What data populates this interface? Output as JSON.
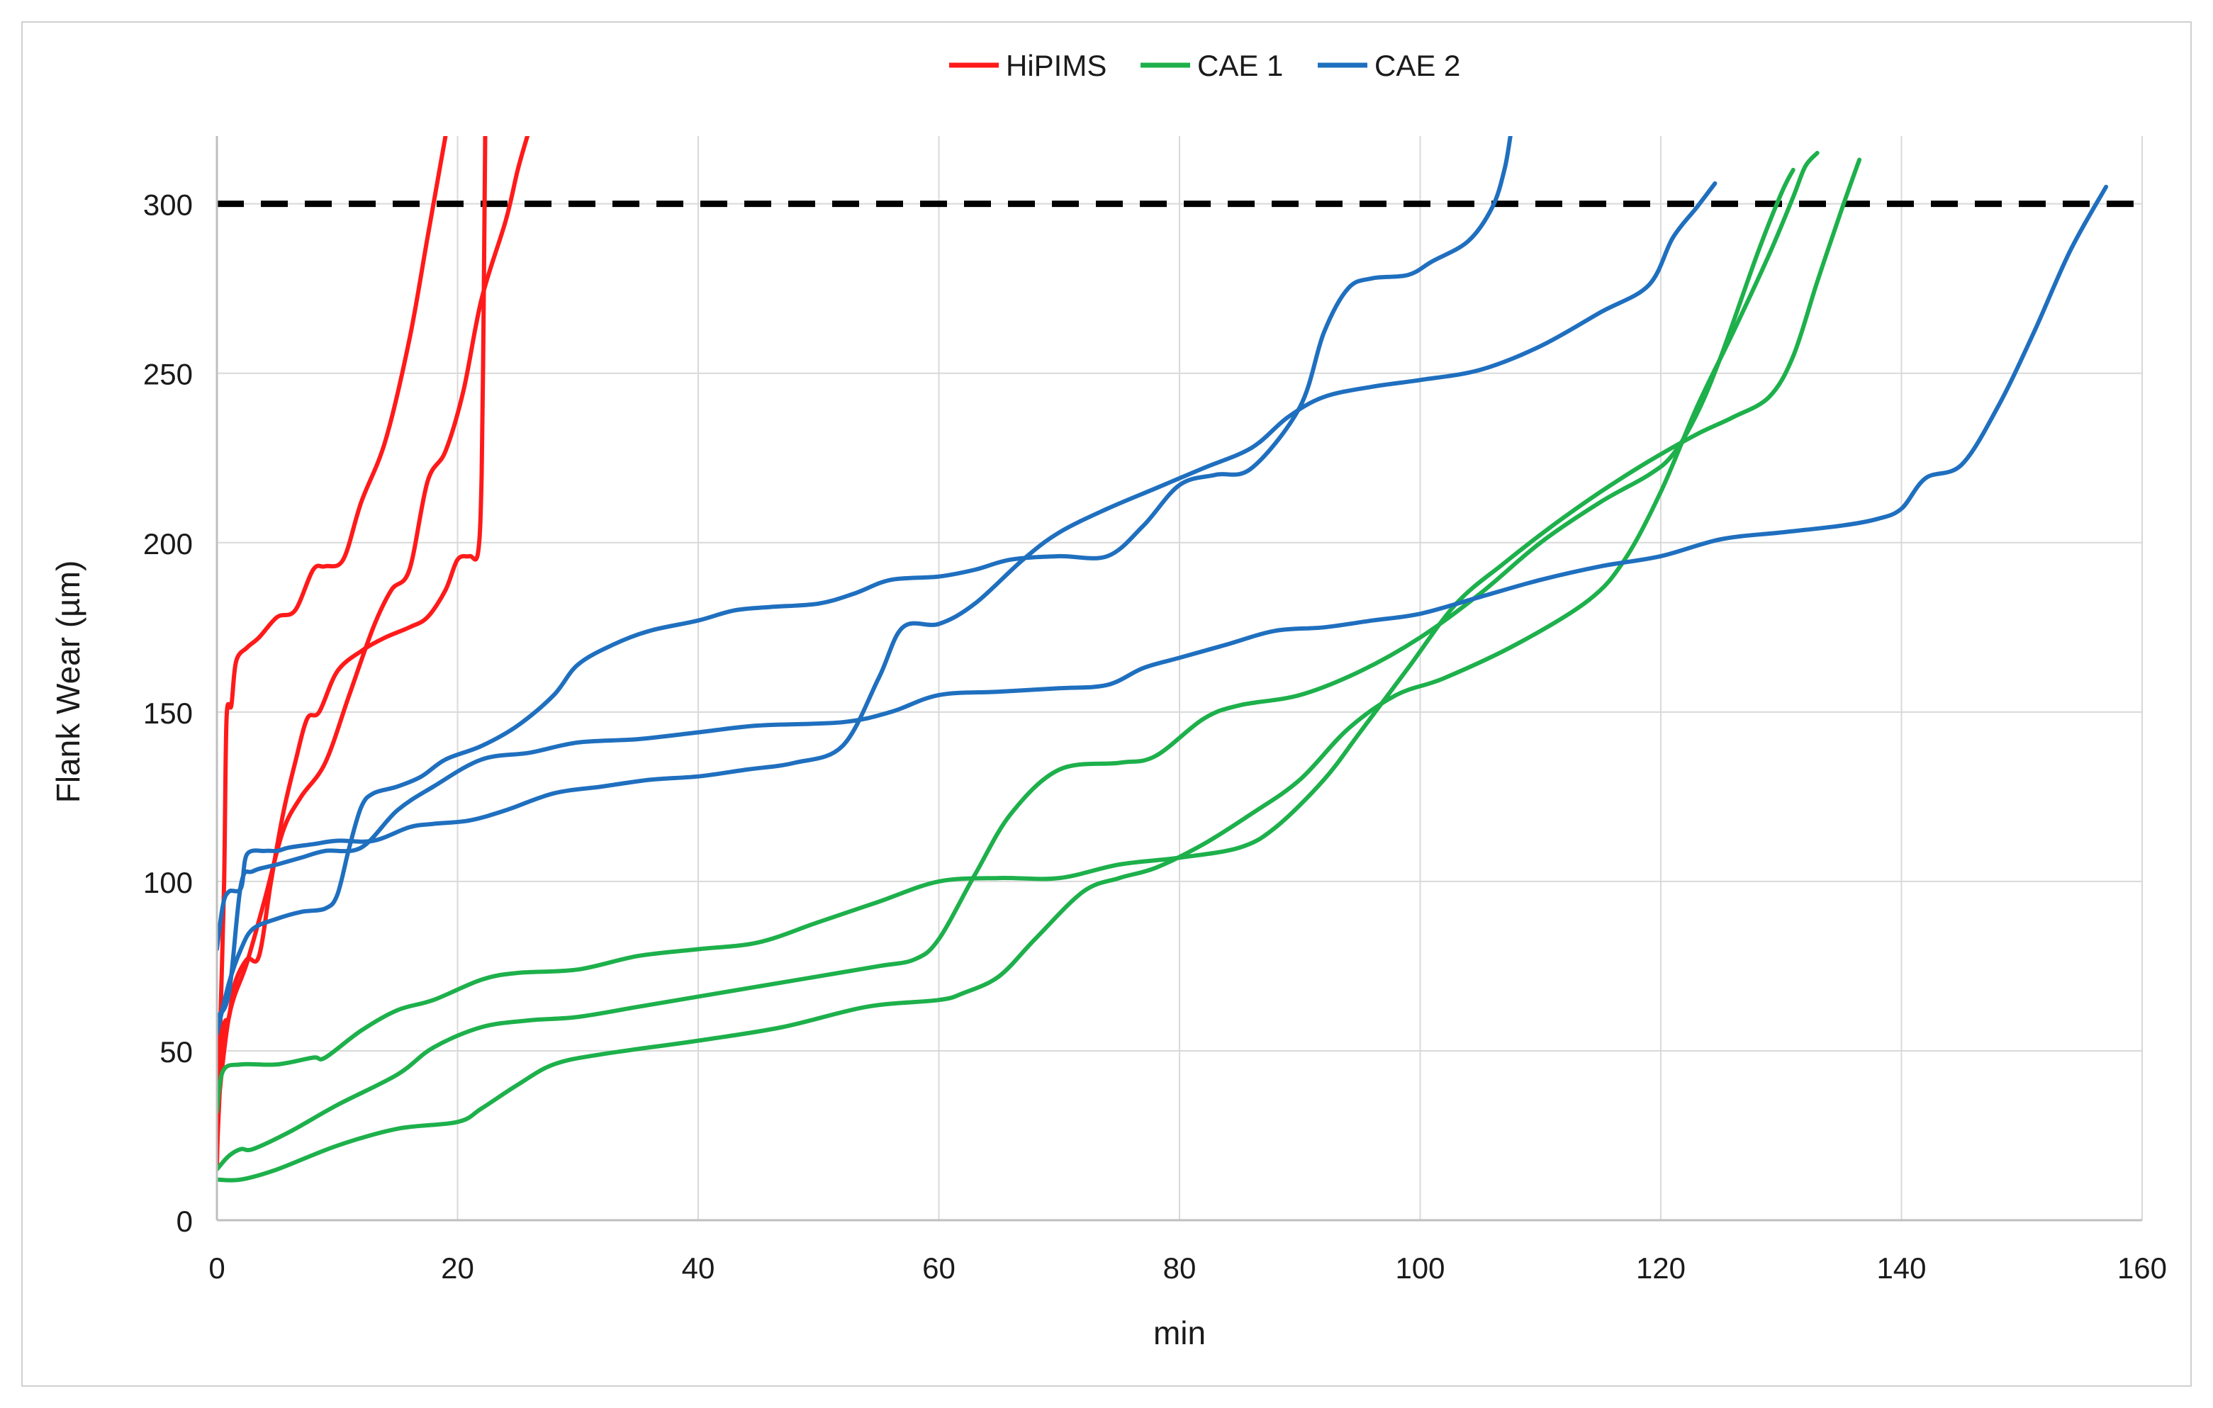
{
  "chart_data": {
    "type": "line",
    "title": "",
    "xlabel": "min",
    "ylabel": "Flank Wear (µm)",
    "xlim": [
      0,
      160
    ],
    "ylim": [
      0,
      320
    ],
    "x_ticks": [
      0,
      20,
      40,
      60,
      80,
      100,
      120,
      140,
      160
    ],
    "y_ticks": [
      0,
      50,
      100,
      150,
      200,
      250,
      300
    ],
    "grid": true,
    "legend_position": "top-center",
    "legend": [
      {
        "name": "HiPIMS",
        "color": "#ff1a1a"
      },
      {
        "name": "CAE 1",
        "color": "#1db04b"
      },
      {
        "name": "CAE 2",
        "color": "#1f6fbf"
      }
    ],
    "reference_line": {
      "y": 300,
      "style": "dashed",
      "color": "#000000"
    },
    "series": [
      {
        "group": "HiPIMS",
        "color": "#ff1a1a",
        "points": [
          [
            0,
            16
          ],
          [
            0.3,
            60
          ],
          [
            0.6,
            100
          ],
          [
            0.8,
            148
          ],
          [
            1.2,
            152
          ],
          [
            1.6,
            165
          ],
          [
            2.5,
            169
          ],
          [
            3.5,
            172
          ],
          [
            5,
            178
          ],
          [
            6.5,
            180
          ],
          [
            8,
            192
          ],
          [
            9,
            193
          ],
          [
            10.5,
            195
          ],
          [
            12,
            212
          ],
          [
            14,
            230
          ],
          [
            16,
            260
          ],
          [
            17.5,
            290
          ],
          [
            19,
            320
          ]
        ]
      },
      {
        "group": "HiPIMS",
        "color": "#ff1a1a",
        "points": [
          [
            0,
            20
          ],
          [
            0.5,
            55
          ],
          [
            1,
            60
          ],
          [
            1.5,
            70
          ],
          [
            2.5,
            77
          ],
          [
            3.5,
            78
          ],
          [
            4.5,
            100
          ],
          [
            5.5,
            120
          ],
          [
            6.5,
            135
          ],
          [
            7.5,
            148
          ],
          [
            8.5,
            150
          ],
          [
            10,
            162
          ],
          [
            12,
            168
          ],
          [
            14,
            172
          ],
          [
            16,
            175
          ],
          [
            17.5,
            178
          ],
          [
            19,
            186
          ],
          [
            20,
            195
          ],
          [
            21,
            196
          ],
          [
            21.7,
            197
          ],
          [
            22,
            220
          ],
          [
            22.2,
            280
          ],
          [
            22.3,
            320
          ]
        ]
      },
      {
        "group": "HiPIMS",
        "color": "#ff1a1a",
        "points": [
          [
            0,
            30
          ],
          [
            1,
            60
          ],
          [
            2.5,
            76
          ],
          [
            4,
            95
          ],
          [
            5.5,
            115
          ],
          [
            7,
            125
          ],
          [
            9,
            135
          ],
          [
            11,
            155
          ],
          [
            13,
            175
          ],
          [
            14.5,
            186
          ],
          [
            16,
            192
          ],
          [
            17.5,
            218
          ],
          [
            19,
            227
          ],
          [
            20.5,
            245
          ],
          [
            22,
            272
          ],
          [
            24,
            295
          ],
          [
            25,
            310
          ],
          [
            25.8,
            320
          ]
        ]
      },
      {
        "group": "CAE 1",
        "color": "#1db04b",
        "points": [
          [
            0,
            12
          ],
          [
            2,
            12
          ],
          [
            5,
            15
          ],
          [
            10,
            22
          ],
          [
            15,
            27
          ],
          [
            20,
            29
          ],
          [
            22,
            33
          ],
          [
            25,
            40
          ],
          [
            28,
            46
          ],
          [
            32,
            49
          ],
          [
            40,
            53
          ],
          [
            47,
            57
          ],
          [
            54,
            63
          ],
          [
            60,
            65
          ],
          [
            62,
            67
          ],
          [
            65,
            72
          ],
          [
            68,
            83
          ],
          [
            72,
            97
          ],
          [
            75,
            101
          ],
          [
            78,
            104
          ],
          [
            82,
            111
          ],
          [
            86,
            120
          ],
          [
            90,
            130
          ],
          [
            94,
            145
          ],
          [
            98,
            155
          ],
          [
            102,
            160
          ],
          [
            108,
            170
          ],
          [
            114,
            183
          ],
          [
            117,
            195
          ],
          [
            120,
            215
          ],
          [
            123,
            240
          ],
          [
            126,
            262
          ],
          [
            129,
            285
          ],
          [
            131,
            302
          ],
          [
            132,
            311
          ],
          [
            133,
            315
          ]
        ]
      },
      {
        "group": "CAE 1",
        "color": "#1db04b",
        "points": [
          [
            0,
            15
          ],
          [
            1,
            19
          ],
          [
            2,
            21
          ],
          [
            3,
            21
          ],
          [
            6,
            26
          ],
          [
            10,
            34
          ],
          [
            15,
            43
          ],
          [
            18,
            51
          ],
          [
            22,
            57
          ],
          [
            26,
            59
          ],
          [
            30,
            60
          ],
          [
            35,
            63
          ],
          [
            40,
            66
          ],
          [
            45,
            69
          ],
          [
            50,
            72
          ],
          [
            55,
            75
          ],
          [
            58,
            77
          ],
          [
            60,
            83
          ],
          [
            63,
            102
          ],
          [
            66,
            120
          ],
          [
            70,
            133
          ],
          [
            75,
            135
          ],
          [
            78,
            137
          ],
          [
            82,
            148
          ],
          [
            85,
            152
          ],
          [
            90,
            155
          ],
          [
            95,
            162
          ],
          [
            100,
            172
          ],
          [
            105,
            185
          ],
          [
            110,
            200
          ],
          [
            115,
            212
          ],
          [
            119,
            220
          ],
          [
            121,
            226
          ],
          [
            123,
            238
          ],
          [
            125,
            255
          ],
          [
            128,
            285
          ],
          [
            130,
            303
          ],
          [
            131,
            310
          ]
        ]
      },
      {
        "group": "CAE 1",
        "color": "#1db04b",
        "points": [
          [
            0,
            32
          ],
          [
            0.5,
            44
          ],
          [
            2,
            46
          ],
          [
            5,
            46
          ],
          [
            8,
            48
          ],
          [
            9,
            48
          ],
          [
            12,
            56
          ],
          [
            15,
            62
          ],
          [
            18,
            65
          ],
          [
            22,
            71
          ],
          [
            25,
            73
          ],
          [
            30,
            74
          ],
          [
            35,
            78
          ],
          [
            40,
            80
          ],
          [
            45,
            82
          ],
          [
            50,
            88
          ],
          [
            55,
            94
          ],
          [
            60,
            100
          ],
          [
            65,
            101
          ],
          [
            70,
            101
          ],
          [
            75,
            105
          ],
          [
            80,
            107
          ],
          [
            85,
            110
          ],
          [
            88,
            116
          ],
          [
            92,
            130
          ],
          [
            95,
            144
          ],
          [
            99,
            163
          ],
          [
            103,
            182
          ],
          [
            107,
            194
          ],
          [
            111,
            205
          ],
          [
            115,
            215
          ],
          [
            119,
            224
          ],
          [
            123,
            232
          ],
          [
            126,
            237
          ],
          [
            129,
            243
          ],
          [
            131,
            255
          ],
          [
            133,
            277
          ],
          [
            135,
            298
          ],
          [
            136.5,
            313
          ]
        ]
      },
      {
        "group": "CAE 2",
        "color": "#1f6fbf",
        "points": [
          [
            0,
            55
          ],
          [
            1,
            70
          ],
          [
            2,
            80
          ],
          [
            3,
            86
          ],
          [
            5,
            89
          ],
          [
            7,
            91
          ],
          [
            9,
            92
          ],
          [
            10,
            96
          ],
          [
            11,
            110
          ],
          [
            12,
            122
          ],
          [
            13,
            126
          ],
          [
            15,
            128
          ],
          [
            17,
            131
          ],
          [
            19,
            136
          ],
          [
            22,
            140
          ],
          [
            25,
            146
          ],
          [
            28,
            155
          ],
          [
            30,
            164
          ],
          [
            33,
            170
          ],
          [
            36,
            174
          ],
          [
            40,
            177
          ],
          [
            43,
            180
          ],
          [
            46,
            181
          ],
          [
            50,
            182
          ],
          [
            53,
            185
          ],
          [
            56,
            189
          ],
          [
            60,
            190
          ],
          [
            63,
            192
          ],
          [
            66,
            195
          ],
          [
            70,
            196
          ],
          [
            74,
            196
          ],
          [
            77,
            205
          ],
          [
            80,
            217
          ],
          [
            83,
            220
          ],
          [
            86,
            222
          ],
          [
            90,
            240
          ],
          [
            92,
            262
          ],
          [
            94,
            275
          ],
          [
            96,
            278
          ],
          [
            99,
            279
          ],
          [
            101,
            283
          ],
          [
            104,
            289
          ],
          [
            106,
            299
          ],
          [
            107,
            310
          ],
          [
            107.5,
            320
          ]
        ]
      },
      {
        "group": "CAE 2",
        "color": "#1f6fbf",
        "points": [
          [
            0,
            80
          ],
          [
            0.5,
            93
          ],
          [
            1,
            97
          ],
          [
            2,
            98
          ],
          [
            2.5,
            108
          ],
          [
            4,
            109
          ],
          [
            5,
            109
          ],
          [
            6,
            110
          ],
          [
            8,
            111
          ],
          [
            10,
            112
          ],
          [
            13,
            112
          ],
          [
            16,
            116
          ],
          [
            18,
            117
          ],
          [
            21,
            118
          ],
          [
            24,
            121
          ],
          [
            28,
            126
          ],
          [
            32,
            128
          ],
          [
            36,
            130
          ],
          [
            40,
            131
          ],
          [
            44,
            133
          ],
          [
            48,
            135
          ],
          [
            52,
            140
          ],
          [
            55,
            160
          ],
          [
            57,
            175
          ],
          [
            60,
            176
          ],
          [
            63,
            182
          ],
          [
            67,
            195
          ],
          [
            70,
            203
          ],
          [
            74,
            210
          ],
          [
            78,
            216
          ],
          [
            82,
            222
          ],
          [
            86,
            228
          ],
          [
            89,
            237
          ],
          [
            92,
            243
          ],
          [
            96,
            246
          ],
          [
            100,
            248
          ],
          [
            105,
            251
          ],
          [
            110,
            258
          ],
          [
            115,
            268
          ],
          [
            119,
            276
          ],
          [
            121,
            290
          ],
          [
            123,
            299
          ],
          [
            124.5,
            306
          ]
        ]
      },
      {
        "group": "CAE 2",
        "color": "#1f6fbf",
        "points": [
          [
            0,
            60
          ],
          [
            1,
            67
          ],
          [
            2,
            99
          ],
          [
            3,
            103
          ],
          [
            5,
            105
          ],
          [
            7,
            107
          ],
          [
            9,
            109
          ],
          [
            12,
            110
          ],
          [
            15,
            121
          ],
          [
            18,
            128
          ],
          [
            22,
            136
          ],
          [
            26,
            138
          ],
          [
            30,
            141
          ],
          [
            35,
            142
          ],
          [
            40,
            144
          ],
          [
            45,
            146
          ],
          [
            52,
            147
          ],
          [
            56,
            150
          ],
          [
            60,
            155
          ],
          [
            65,
            156
          ],
          [
            70,
            157
          ],
          [
            74,
            158
          ],
          [
            77,
            163
          ],
          [
            80,
            166
          ],
          [
            84,
            170
          ],
          [
            88,
            174
          ],
          [
            92,
            175
          ],
          [
            96,
            177
          ],
          [
            100,
            179
          ],
          [
            105,
            184
          ],
          [
            110,
            189
          ],
          [
            115,
            193
          ],
          [
            120,
            196
          ],
          [
            125,
            201
          ],
          [
            130,
            203
          ],
          [
            135,
            205
          ],
          [
            138,
            207
          ],
          [
            140,
            210
          ],
          [
            142,
            219
          ],
          [
            145,
            223
          ],
          [
            148,
            240
          ],
          [
            151,
            262
          ],
          [
            154,
            286
          ],
          [
            157,
            305
          ]
        ]
      }
    ]
  }
}
